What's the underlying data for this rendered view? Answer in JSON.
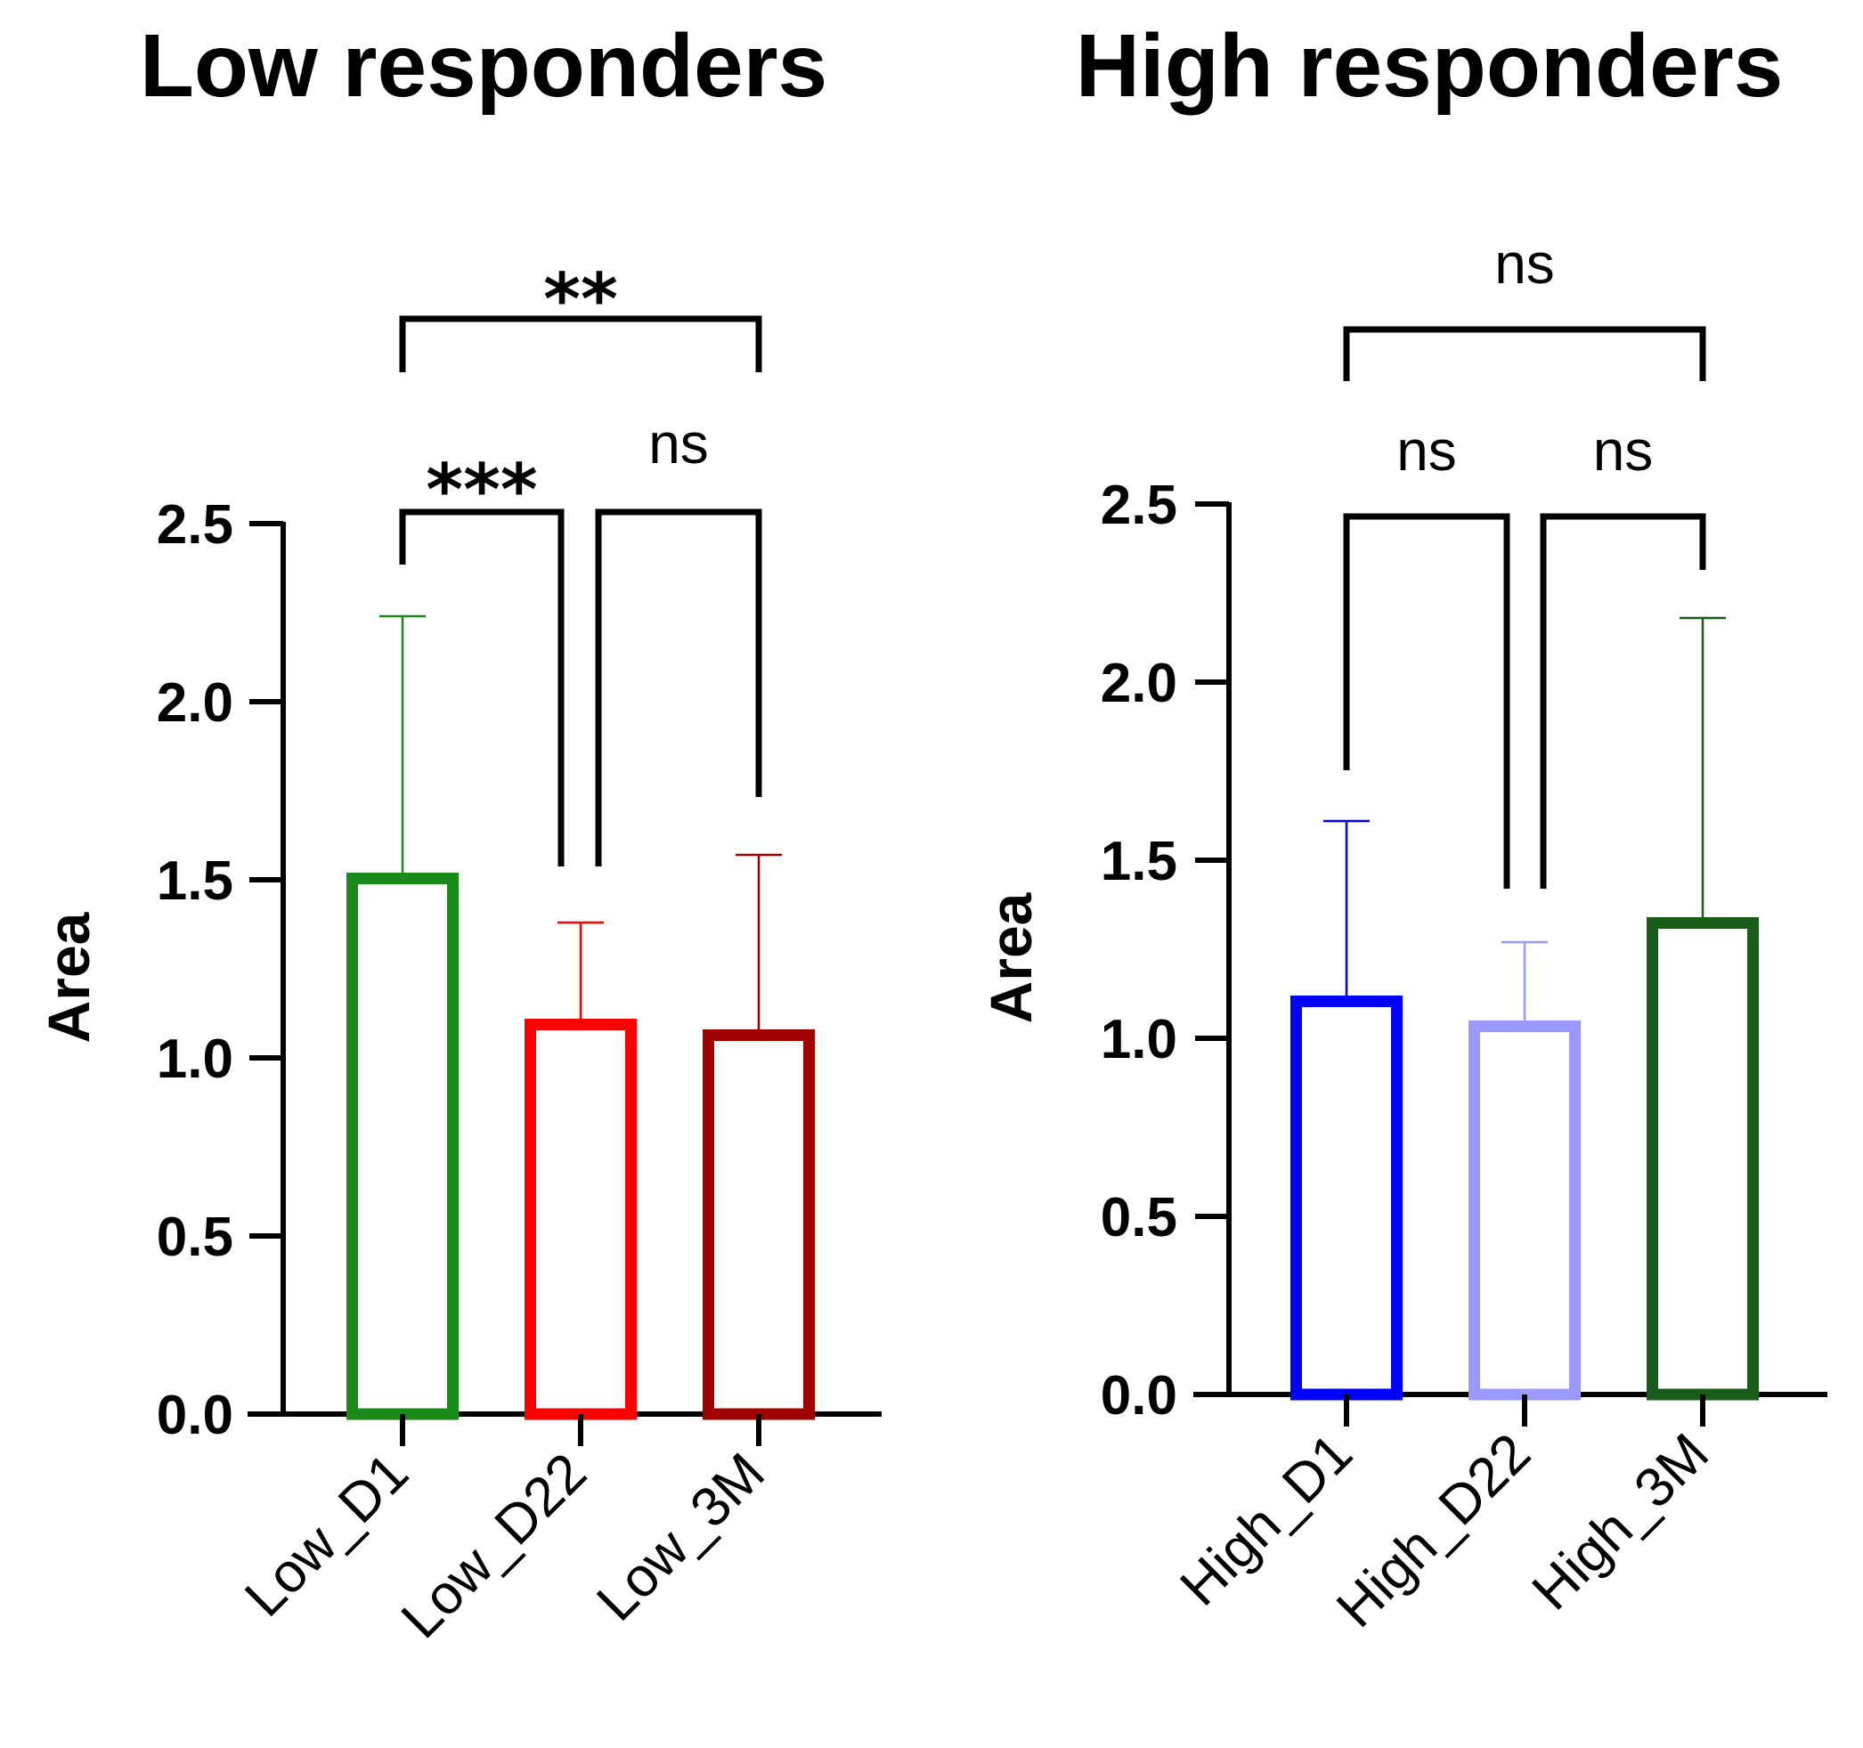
{
  "chart_data": [
    {
      "type": "bar",
      "title": "Low responders",
      "ylabel": "Area",
      "xlabel": "",
      "ylim": [
        0,
        2.5
      ],
      "yticks": [
        "0.0",
        "0.5",
        "1.0",
        "1.5",
        "2.0",
        "2.5"
      ],
      "grid": false,
      "categories": [
        "Low_D1",
        "Low_D22",
        "Low_3M"
      ],
      "values": [
        1.52,
        1.11,
        1.08
      ],
      "error_upper": [
        2.24,
        1.38,
        1.57
      ],
      "colors": [
        "#1a8a1a",
        "#ff0000",
        "#a00000"
      ],
      "comparisons": [
        {
          "from": 0,
          "to": 2,
          "label": "**"
        },
        {
          "from": 0,
          "to": 1,
          "label": "***"
        },
        {
          "from": 1,
          "to": 2,
          "label": "ns"
        }
      ]
    },
    {
      "type": "bar",
      "title": "High responders",
      "ylabel": "Area",
      "xlabel": "",
      "ylim": [
        0,
        2.5
      ],
      "yticks": [
        "0.0",
        "0.5",
        "1.0",
        "1.5",
        "2.0",
        "2.5"
      ],
      "grid": false,
      "categories": [
        "High_D1",
        "High_D22",
        "High_3M"
      ],
      "values": [
        1.12,
        1.05,
        1.34
      ],
      "error_upper": [
        1.61,
        1.27,
        2.18
      ],
      "colors": [
        "#0000ff",
        "#9999ff",
        "#1a5c1a"
      ],
      "comparisons": [
        {
          "from": 0,
          "to": 2,
          "label": "ns"
        },
        {
          "from": 0,
          "to": 1,
          "label": "ns"
        },
        {
          "from": 1,
          "to": 2,
          "label": "ns"
        }
      ]
    }
  ]
}
